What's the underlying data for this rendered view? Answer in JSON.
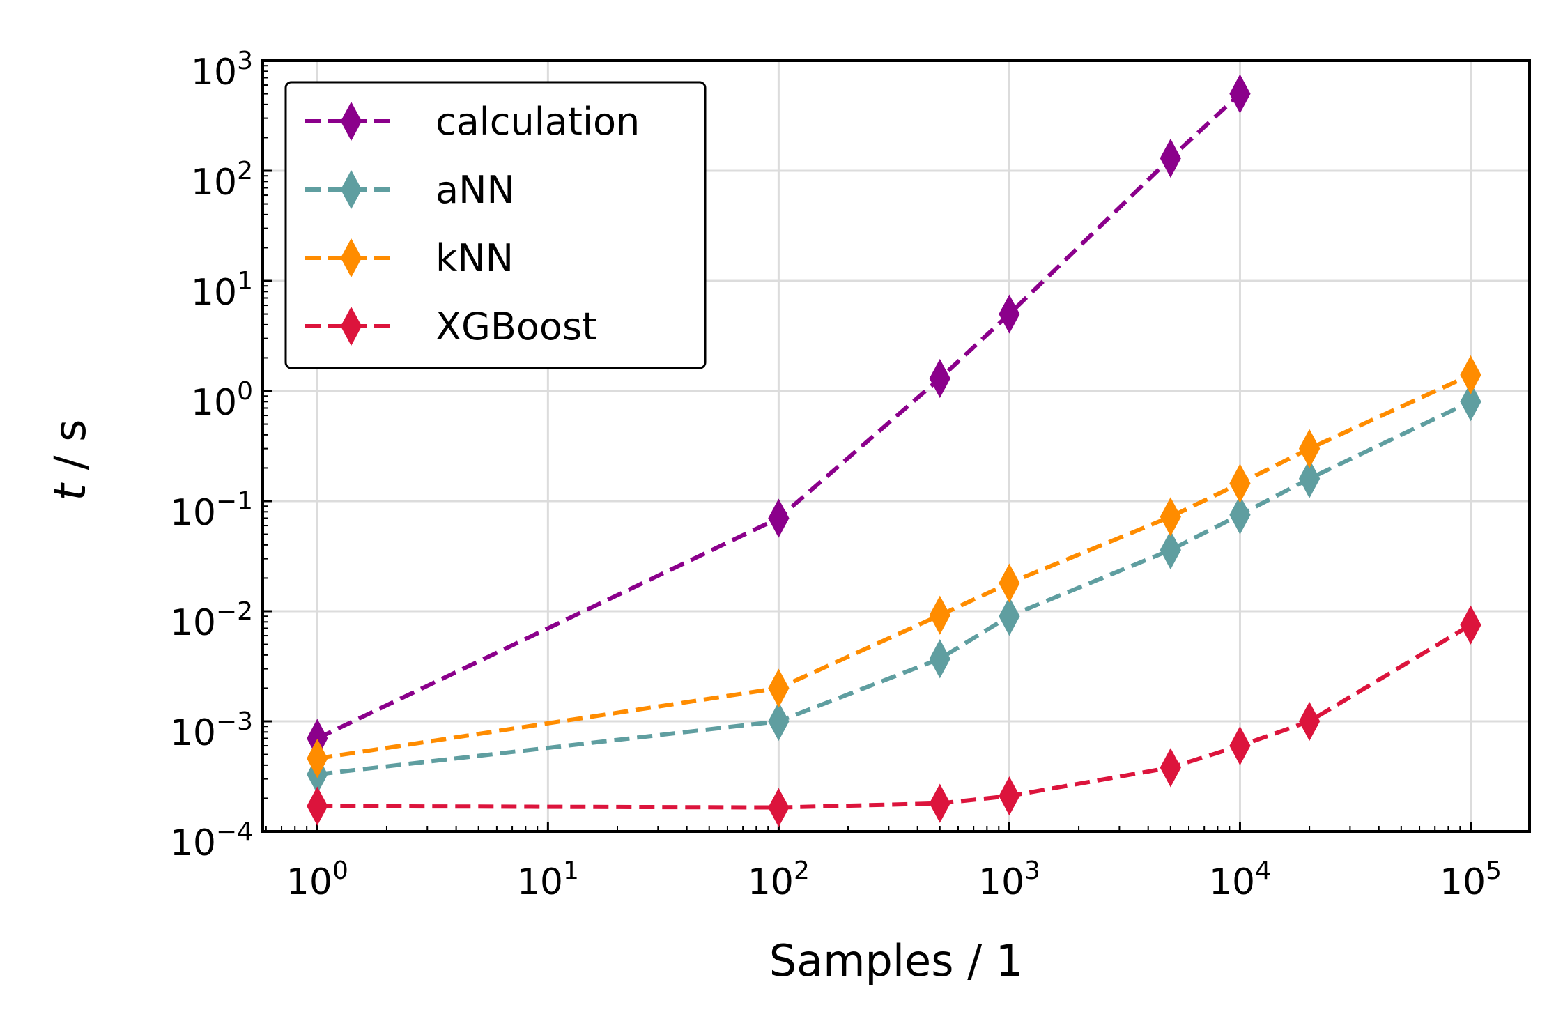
{
  "chart_data": {
    "type": "line",
    "title": "",
    "xlabel": "Samples / 1",
    "ylabel_italic": "t",
    "ylabel_rest": " / s",
    "x_scale": "log",
    "y_scale": "log",
    "xlim": [
      0.58,
      180000
    ],
    "ylim": [
      0.0001,
      1000
    ],
    "x_ticks": [
      {
        "base": "10",
        "exp": "0",
        "value": 1
      },
      {
        "base": "10",
        "exp": "1",
        "value": 10
      },
      {
        "base": "10",
        "exp": "2",
        "value": 100
      },
      {
        "base": "10",
        "exp": "3",
        "value": 1000
      },
      {
        "base": "10",
        "exp": "4",
        "value": 10000
      },
      {
        "base": "10",
        "exp": "5",
        "value": 100000
      }
    ],
    "y_ticks": [
      {
        "base": "10",
        "exp": "−4",
        "value": 0.0001
      },
      {
        "base": "10",
        "exp": "−3",
        "value": 0.001
      },
      {
        "base": "10",
        "exp": "−2",
        "value": 0.01
      },
      {
        "base": "10",
        "exp": "−1",
        "value": 0.1
      },
      {
        "base": "10",
        "exp": "0",
        "value": 1
      },
      {
        "base": "10",
        "exp": "1",
        "value": 10
      },
      {
        "base": "10",
        "exp": "2",
        "value": 100
      },
      {
        "base": "10",
        "exp": "3",
        "value": 1000
      }
    ],
    "grid": true,
    "legend_position": "top-left",
    "marker": "thin-diamond",
    "line_style": "dashed",
    "series": [
      {
        "name": "calculation",
        "color": "#8b008b",
        "x": [
          1,
          100,
          500,
          1000,
          5000,
          10000
        ],
        "y": [
          0.0007,
          0.07,
          1.3,
          5.0,
          130,
          500
        ]
      },
      {
        "name": "aNN",
        "color": "#5f9ea0",
        "x": [
          1,
          100,
          500,
          1000,
          5000,
          10000,
          20000,
          100000
        ],
        "y": [
          0.00033,
          0.001,
          0.0037,
          0.009,
          0.036,
          0.075,
          0.16,
          0.8
        ]
      },
      {
        "name": "kNN",
        "color": "#ff8c00",
        "x": [
          1,
          100,
          500,
          1000,
          5000,
          10000,
          20000,
          100000
        ],
        "y": [
          0.00046,
          0.002,
          0.0092,
          0.018,
          0.072,
          0.145,
          0.3,
          1.4
        ]
      },
      {
        "name": "XGBoost",
        "color": "#dc143c",
        "x": [
          1,
          100,
          500,
          1000,
          5000,
          10000,
          20000,
          100000
        ],
        "y": [
          0.00017,
          0.000165,
          0.00018,
          0.00021,
          0.00038,
          0.0006,
          0.001,
          0.0075
        ]
      }
    ]
  }
}
